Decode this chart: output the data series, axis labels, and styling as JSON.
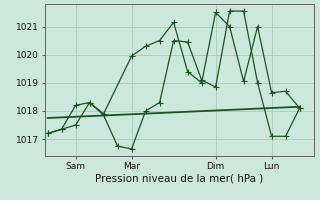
{
  "background_color": "#cce8dc",
  "grid_color": "#a8c8b8",
  "line_color": "#1a5520",
  "xlabel": "Pression niveau de la mer( hPa )",
  "ylim": [
    1016.4,
    1021.8
  ],
  "yticks": [
    1017,
    1018,
    1019,
    1020,
    1021
  ],
  "xtick_labels": [
    "Sam",
    "Mar",
    "Dim",
    "Lun"
  ],
  "xtick_positions": [
    1,
    3,
    6,
    8
  ],
  "xlim": [
    -0.1,
    9.5
  ],
  "series1_x": [
    0,
    0.5,
    1.0,
    1.5,
    2.0,
    2.5,
    3.0,
    3.5,
    4.0,
    4.5,
    5.0,
    5.5,
    6.0,
    6.5,
    7.0,
    7.5,
    8.0,
    8.5,
    9.0
  ],
  "series1_y": [
    1017.2,
    1017.35,
    1017.5,
    1018.3,
    1017.85,
    1016.75,
    1016.65,
    1018.0,
    1018.3,
    1020.5,
    1020.45,
    1019.1,
    1018.85,
    1021.55,
    1021.55,
    1019.0,
    1017.1,
    1017.1,
    1018.1
  ],
  "series2_x": [
    0,
    0.5,
    1.0,
    1.5,
    2.0,
    3.0,
    3.5,
    4.0,
    4.5,
    5.0,
    5.5,
    6.0,
    6.5,
    7.0,
    7.5,
    8.0,
    8.5,
    9.0
  ],
  "series2_y": [
    1017.2,
    1017.35,
    1018.2,
    1018.3,
    1017.9,
    1019.95,
    1020.3,
    1020.5,
    1021.15,
    1019.4,
    1019.0,
    1021.5,
    1021.0,
    1019.05,
    1021.0,
    1018.65,
    1018.7,
    1018.1
  ],
  "series3_x": [
    0,
    9.0
  ],
  "series3_y": [
    1017.75,
    1018.15
  ]
}
